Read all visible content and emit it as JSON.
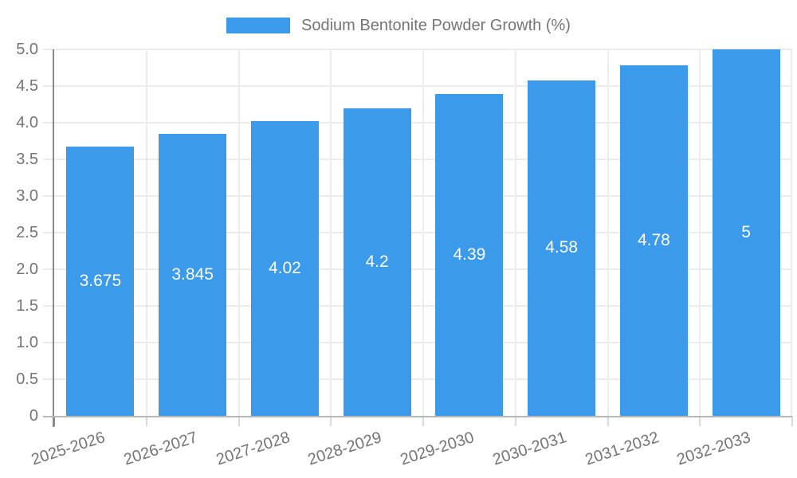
{
  "legend": {
    "label": "Sodium Bentonite Powder Growth (%)"
  },
  "chart_data": {
    "type": "bar",
    "title": "Sodium Bentonite Powder Growth (%)",
    "categories": [
      "2025-2026",
      "2026-2027",
      "2027-2028",
      "2028-2029",
      "2029-2030",
      "2030-2031",
      "2031-2032",
      "2032-2033"
    ],
    "values": [
      3.675,
      3.845,
      4.02,
      4.2,
      4.39,
      4.58,
      4.78,
      5
    ],
    "value_labels": [
      "3.675",
      "3.845",
      "4.02",
      "4.2",
      "4.39",
      "4.58",
      "4.78",
      "5"
    ],
    "xlabel": "",
    "ylabel": "",
    "ylim": [
      0,
      5
    ],
    "ytick_step": 0.5,
    "ytick_labels": [
      "0",
      "0.5",
      "1.0",
      "1.5",
      "2.0",
      "2.5",
      "3.0",
      "3.5",
      "4.0",
      "4.5",
      "5.0"
    ],
    "grid": true,
    "legend_position": "top-center",
    "colors": {
      "bar": "#3B9AEA",
      "grid": "#ececec",
      "tick": "#d9d9d9",
      "y_axis_line": "#8a8a8a",
      "x_axis_line": "#b8b8b8",
      "axis_text": "#757575",
      "value_label": "#ffffff"
    }
  }
}
